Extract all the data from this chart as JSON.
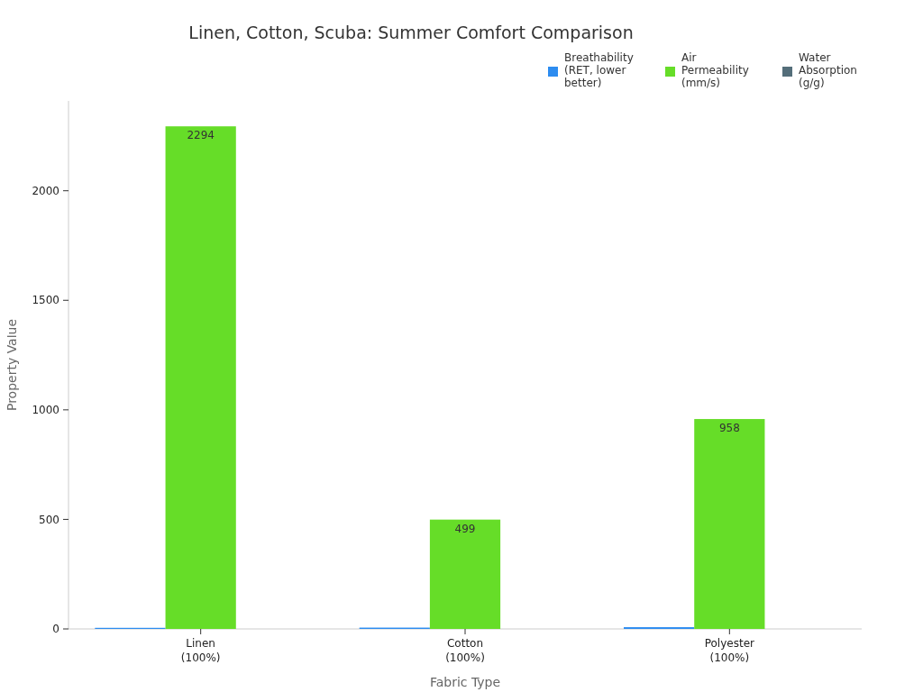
{
  "chart_data": {
    "type": "bar",
    "title": "Linen, Cotton, Scuba: Summer Comfort Comparison",
    "xlabel": "Fabric Type",
    "ylabel": "Property Value",
    "categories": [
      "Linen\n(100%)",
      "Cotton\n(100%)",
      "Polyester\n(100%)"
    ],
    "series": [
      {
        "name": "Breathability (RET, lower better)",
        "color": "#2d8cf0",
        "values": [
          5,
          6,
          8
        ]
      },
      {
        "name": "Air Permeability (mm/s)",
        "color": "#66dd28",
        "values": [
          2294,
          499,
          958
        ],
        "value_labels": [
          "2294",
          "499",
          "958"
        ]
      },
      {
        "name": "Water Absorption (g/g)",
        "color": "#546e7a",
        "values": [
          0,
          0,
          0
        ]
      }
    ],
    "ylim": [
      0,
      2410
    ],
    "yticks": [
      0,
      500,
      1000,
      1500,
      2000
    ],
    "grid": false,
    "legend": "top right"
  }
}
